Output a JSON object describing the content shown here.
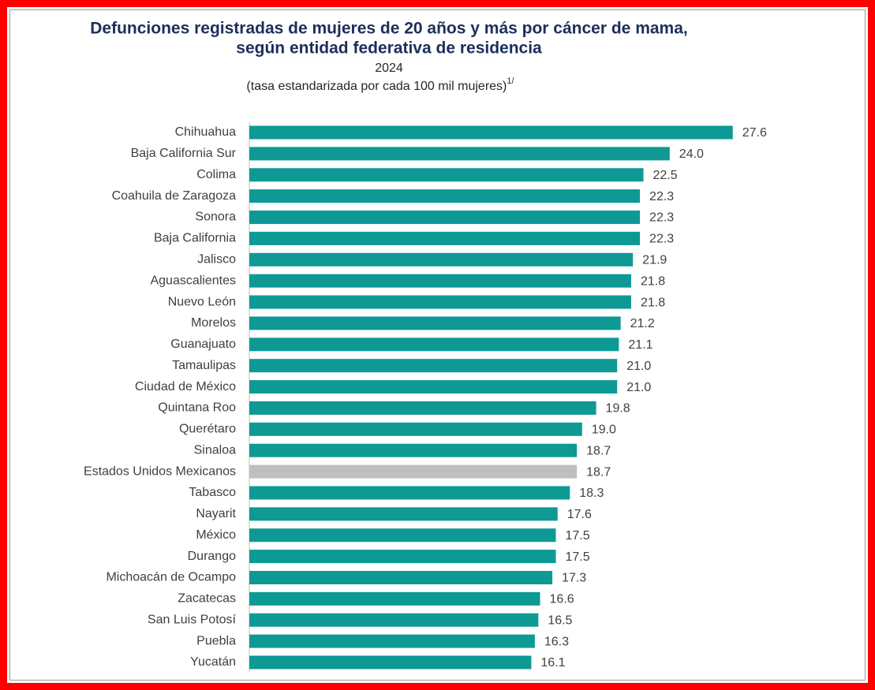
{
  "chart_data": {
    "type": "bar",
    "orientation": "horizontal",
    "title": [
      "Defunciones registradas de mujeres de 20 años y más por cáncer de mama,",
      "según entidad federativa de residencia"
    ],
    "subtitle": "2024",
    "units": "(tasa estandarizada por cada 100 mil mujeres)",
    "units_note": "1/",
    "categories": [
      "Chihuahua",
      "Baja California Sur",
      "Colima",
      "Coahuila de Zaragoza",
      "Sonora",
      "Baja California",
      "Jalisco",
      "Aguascalientes",
      "Nuevo León",
      "Morelos",
      "Guanajuato",
      "Tamaulipas",
      "Ciudad de México",
      "Quintana Roo",
      "Querétaro",
      "Sinaloa",
      "Estados Unidos Mexicanos",
      "Tabasco",
      "Nayarit",
      "México",
      "Durango",
      "Michoacán de Ocampo",
      "Zacatecas",
      "San Luis Potosí",
      "Puebla",
      "Yucatán"
    ],
    "values": [
      27.6,
      24.0,
      22.5,
      22.3,
      22.3,
      22.3,
      21.9,
      21.8,
      21.8,
      21.2,
      21.1,
      21.0,
      21.0,
      19.8,
      19.0,
      18.7,
      18.7,
      18.3,
      17.6,
      17.5,
      17.5,
      17.3,
      16.6,
      16.5,
      16.3,
      16.1
    ],
    "value_labels": [
      "27.6",
      "24.0",
      "22.5",
      "22.3",
      "22.3",
      "22.3",
      "21.9",
      "21.8",
      "21.8",
      "21.2",
      "21.1",
      "21.0",
      "21.0",
      "19.8",
      "19.0",
      "18.7",
      "18.7",
      "18.3",
      "17.6",
      "17.5",
      "17.5",
      "17.3",
      "16.6",
      "16.5",
      "16.3",
      "16.1"
    ],
    "colors": [
      "#0e9995",
      "#0e9995",
      "#0e9995",
      "#0e9995",
      "#0e9995",
      "#0e9995",
      "#0e9995",
      "#0e9995",
      "#0e9995",
      "#0e9995",
      "#0e9995",
      "#0e9995",
      "#0e9995",
      "#0e9995",
      "#0e9995",
      "#0e9995",
      "#bfbfbf",
      "#0e9995",
      "#0e9995",
      "#0e9995",
      "#0e9995",
      "#0e9995",
      "#0e9995",
      "#0e9995",
      "#0e9995",
      "#0e9995"
    ],
    "xlim": [
      0,
      30
    ]
  }
}
